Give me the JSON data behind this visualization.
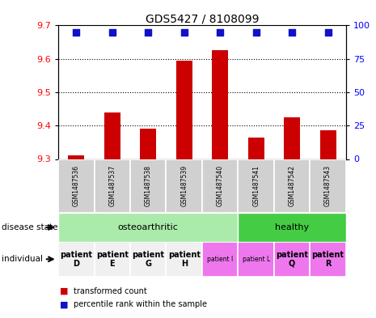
{
  "title": "GDS5427 / 8108099",
  "samples": [
    "GSM1487536",
    "GSM1487537",
    "GSM1487538",
    "GSM1487539",
    "GSM1487540",
    "GSM1487541",
    "GSM1487542",
    "GSM1487543"
  ],
  "transformed_counts": [
    9.31,
    9.44,
    9.39,
    9.595,
    9.625,
    9.365,
    9.425,
    9.385
  ],
  "percentile_ranks": [
    93,
    95,
    93,
    95,
    95,
    94,
    94,
    94
  ],
  "ylim": [
    9.3,
    9.7
  ],
  "yticks": [
    9.3,
    9.4,
    9.5,
    9.6,
    9.7
  ],
  "right_yticks": [
    0,
    25,
    50,
    75,
    100
  ],
  "right_ylim": [
    0,
    100
  ],
  "bar_color": "#cc0000",
  "dot_color": "#1111cc",
  "bar_width": 0.45,
  "dot_size": 30,
  "legend_red_label": "transformed count",
  "legend_blue_label": "percentile rank within the sample",
  "sample_bg_color": "#d0d0d0",
  "disease_state_bg_osteo": "#aaeaaa",
  "disease_state_bg_healthy": "#44cc44",
  "indiv_colors": [
    "#f0f0f0",
    "#f0f0f0",
    "#f0f0f0",
    "#f0f0f0",
    "#ee77ee",
    "#ee77ee",
    "#ee77ee",
    "#ee77ee"
  ],
  "individual_labels": [
    "patient\nD",
    "patient\nE",
    "patient\nG",
    "patient\nH",
    "patient I",
    "patient L",
    "patient\nQ",
    "patient\nR"
  ],
  "indiv_bold": [
    true,
    true,
    true,
    true,
    false,
    false,
    true,
    true
  ],
  "indiv_fontsize": [
    7,
    7,
    7,
    7,
    5.5,
    5.5,
    7,
    7
  ]
}
